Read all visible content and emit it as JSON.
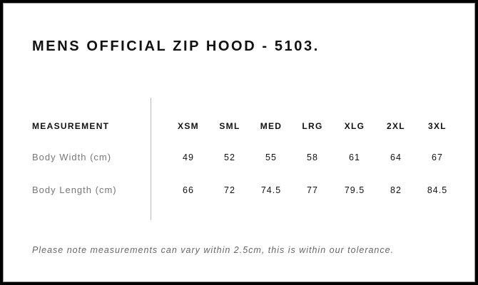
{
  "title": "MENS OFFICIAL ZIP HOOD - 5103.",
  "table": {
    "header_label": "MEASUREMENT",
    "sizes": [
      "XSM",
      "SML",
      "MED",
      "LRG",
      "XLG",
      "2XL",
      "3XL"
    ],
    "rows": [
      {
        "label": "Body Width (cm)",
        "values": [
          "49",
          "52",
          "55",
          "58",
          "61",
          "64",
          "67"
        ]
      },
      {
        "label": "Body Length (cm)",
        "values": [
          "66",
          "72",
          "74.5",
          "77",
          "79.5",
          "82",
          "84.5"
        ]
      }
    ]
  },
  "note": "Please note measurements can vary within 2.5cm, this is within our tolerance."
}
